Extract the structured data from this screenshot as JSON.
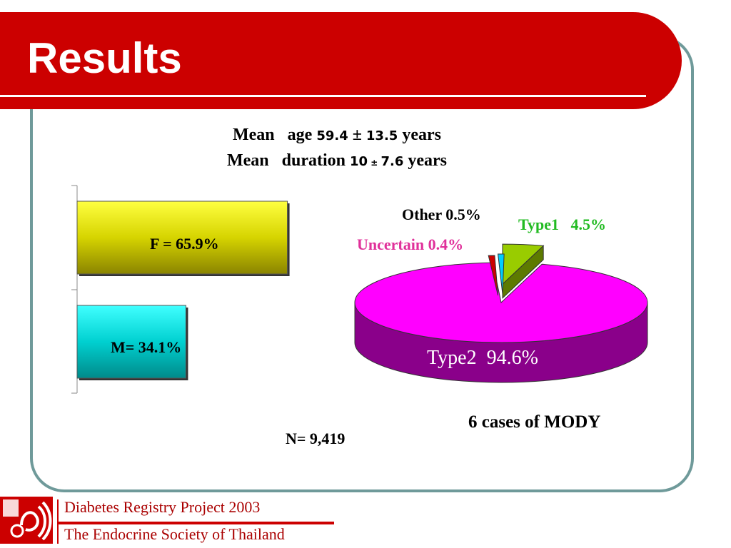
{
  "slide": {
    "title": "Results",
    "stats": {
      "age_pre": "Mean   age ",
      "age_value": "59.4",
      "age_pm": " ± ",
      "age_sd": "13.5",
      "age_post": " years",
      "dur_pre": "Mean   duration ",
      "dur_value": "10",
      "dur_pm": " ± ",
      "dur_sd": "7.6",
      "dur_post": " years"
    },
    "n_label": "N= 9,419",
    "mody_label": "6 cases of MODY",
    "footer": {
      "line1": "Diabetes Registry Project 2003",
      "line2": "The Endocrine Society of Thailand"
    },
    "colors": {
      "header": "#cc0000",
      "frame": "#6f9a9a"
    }
  },
  "chart_data": [
    {
      "type": "bar",
      "orientation": "horizontal",
      "categories": [
        "F",
        "M"
      ],
      "values": [
        65.9,
        34.1
      ],
      "labels": [
        "F = 65.9%",
        "M= 34.1%"
      ],
      "colors": [
        "#e8e600",
        "#00e8e8"
      ],
      "xlim": [
        0,
        100
      ]
    },
    {
      "type": "pie",
      "slices": [
        {
          "label": "Type2  94.6%",
          "value": 94.6,
          "color": "#ff00ff"
        },
        {
          "label": "Type1   4.5%",
          "value": 4.5,
          "color": "#99cc00"
        },
        {
          "label": "Uncertain 0.4%",
          "value": 0.4,
          "color": "#cc0000"
        },
        {
          "label": "Other 0.5%",
          "value": 0.5,
          "color": "#00ccff"
        }
      ]
    }
  ]
}
